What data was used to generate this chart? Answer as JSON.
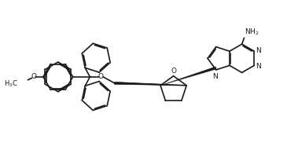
{
  "background_color": "#ffffff",
  "line_color": "#1a1a1a",
  "line_width": 1.2,
  "fig_width": 3.65,
  "fig_height": 1.91,
  "dpi": 100,
  "xlim": [
    0,
    10
  ],
  "ylim": [
    0,
    5.23
  ]
}
